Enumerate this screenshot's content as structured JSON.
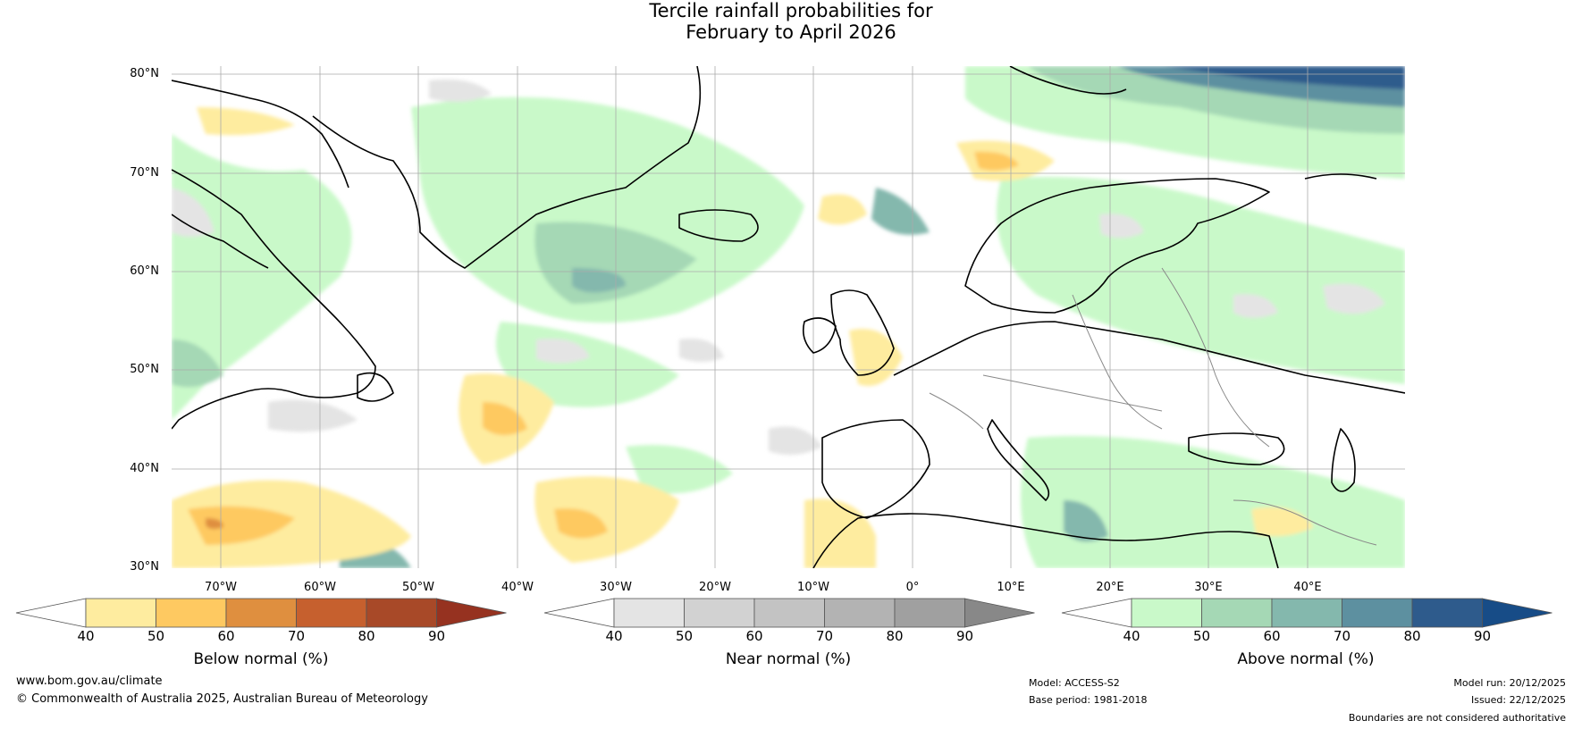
{
  "title_line1": "Tercile rainfall probabilities for",
  "title_line2": "February to April 2026",
  "lat_labels": [
    "80°N",
    "70°N",
    "60°N",
    "50°N",
    "40°N",
    "30°N"
  ],
  "lon_labels": [
    "70°W",
    "60°W",
    "50°W",
    "40°W",
    "30°W",
    "20°W",
    "10°W",
    "0°",
    "10°E",
    "20°E",
    "30°E",
    "40°E"
  ],
  "colorbars": [
    {
      "label": "Below normal (%)",
      "ticks": [
        "40",
        "50",
        "60",
        "70",
        "80",
        "90"
      ],
      "colors": [
        "#ffffff",
        "#feec9f",
        "#fec961",
        "#df8f3f",
        "#c6602e",
        "#a84928",
        "#963220"
      ]
    },
    {
      "label": "Near normal (%)",
      "ticks": [
        "40",
        "50",
        "60",
        "70",
        "80",
        "90"
      ],
      "colors": [
        "#ffffff",
        "#e4e4e4",
        "#d2d2d2",
        "#c3c3c3",
        "#b3b3b3",
        "#a0a0a0",
        "#888888"
      ]
    },
    {
      "label": "Above normal (%)",
      "ticks": [
        "40",
        "50",
        "60",
        "70",
        "80",
        "90"
      ],
      "colors": [
        "#ffffff",
        "#c9f9c9",
        "#a5d8b5",
        "#84b8ad",
        "#5d90a0",
        "#2e5b8c",
        "#174c87"
      ]
    }
  ],
  "footer": {
    "url": "www.bom.gov.au/climate",
    "copyright": "© Commonwealth of Australia 2025, Australian Bureau of Meteorology",
    "model": "Model: ACCESS-S2",
    "base_period": "Base period: 1981-2018",
    "model_run": "Model run: 20/12/2025",
    "issued": "Issued: 22/12/2025",
    "disclaimer": "Boundaries are not considered authoritative"
  }
}
